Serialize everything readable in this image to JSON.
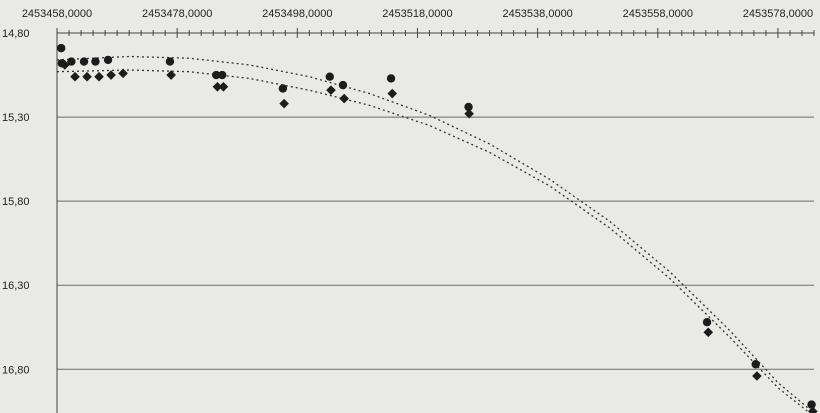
{
  "chart_data": {
    "type": "scatter",
    "title": "",
    "xlabel": "",
    "ylabel": "",
    "x_ticks": [
      "2453458,0000",
      "2453478,0000",
      "2453498,0000",
      "2453518,0000",
      "2453538,0000",
      "2453558,0000",
      "2453578,0000"
    ],
    "y_ticks": [
      "14,80",
      "15,30",
      "15,80",
      "16,30",
      "16,80"
    ],
    "xlim": [
      2453458,
      2453584
    ],
    "ylim": [
      14.8,
      17.06
    ],
    "y_inverted": true,
    "grid": true,
    "series": [
      {
        "marker": "circle",
        "points": [
          {
            "x": 2453458.7,
            "y": 14.89
          },
          {
            "x": 2453458.8,
            "y": 14.98
          },
          {
            "x": 2453460.4,
            "y": 14.97
          },
          {
            "x": 2453462.5,
            "y": 14.97
          },
          {
            "x": 2453464.4,
            "y": 14.97
          },
          {
            "x": 2453466.5,
            "y": 14.96
          },
          {
            "x": 2453476.8,
            "y": 14.97
          },
          {
            "x": 2453484.5,
            "y": 15.05
          },
          {
            "x": 2453485.5,
            "y": 15.05
          },
          {
            "x": 2453495.6,
            "y": 15.13
          },
          {
            "x": 2453503.4,
            "y": 15.06
          },
          {
            "x": 2453505.6,
            "y": 15.11
          },
          {
            "x": 2453513.6,
            "y": 15.07
          },
          {
            "x": 2453526.5,
            "y": 15.24
          },
          {
            "x": 2453566.2,
            "y": 16.52
          },
          {
            "x": 2453574.3,
            "y": 16.77
          },
          {
            "x": 2453583.6,
            "y": 17.01
          }
        ]
      },
      {
        "marker": "diamond",
        "points": [
          {
            "x": 2453459.3,
            "y": 14.99
          },
          {
            "x": 2453461.0,
            "y": 15.06
          },
          {
            "x": 2453463.0,
            "y": 15.06
          },
          {
            "x": 2453465.0,
            "y": 15.06
          },
          {
            "x": 2453467.0,
            "y": 15.05
          },
          {
            "x": 2453469.0,
            "y": 15.04
          },
          {
            "x": 2453477.0,
            "y": 15.05
          },
          {
            "x": 2453484.7,
            "y": 15.12
          },
          {
            "x": 2453485.7,
            "y": 15.12
          },
          {
            "x": 2453495.8,
            "y": 15.22
          },
          {
            "x": 2453503.6,
            "y": 15.14
          },
          {
            "x": 2453505.8,
            "y": 15.19
          },
          {
            "x": 2453513.8,
            "y": 15.16
          },
          {
            "x": 2453526.6,
            "y": 15.28
          },
          {
            "x": 2453566.4,
            "y": 16.58
          },
          {
            "x": 2453574.5,
            "y": 16.84
          },
          {
            "x": 2453583.8,
            "y": 17.05
          }
        ]
      }
    ],
    "trendlines": [
      {
        "style": "dotted",
        "points": [
          {
            "x": 2453458,
            "y": 14.96
          },
          {
            "x": 2453470,
            "y": 14.94
          },
          {
            "x": 2453480,
            "y": 14.95
          },
          {
            "x": 2453490,
            "y": 14.99
          },
          {
            "x": 2453500,
            "y": 15.06
          },
          {
            "x": 2453510,
            "y": 15.16
          },
          {
            "x": 2453520,
            "y": 15.29
          },
          {
            "x": 2453530,
            "y": 15.46
          },
          {
            "x": 2453540,
            "y": 15.67
          },
          {
            "x": 2453550,
            "y": 15.92
          },
          {
            "x": 2453560,
            "y": 16.22
          },
          {
            "x": 2453570,
            "y": 16.57
          },
          {
            "x": 2453578,
            "y": 16.88
          },
          {
            "x": 2453584,
            "y": 17.06
          }
        ]
      },
      {
        "style": "dotted",
        "points": [
          {
            "x": 2453458,
            "y": 15.03
          },
          {
            "x": 2453470,
            "y": 15.02
          },
          {
            "x": 2453480,
            "y": 15.03
          },
          {
            "x": 2453490,
            "y": 15.07
          },
          {
            "x": 2453500,
            "y": 15.14
          },
          {
            "x": 2453510,
            "y": 15.23
          },
          {
            "x": 2453520,
            "y": 15.35
          },
          {
            "x": 2453530,
            "y": 15.51
          },
          {
            "x": 2453540,
            "y": 15.71
          },
          {
            "x": 2453550,
            "y": 15.96
          },
          {
            "x": 2453560,
            "y": 16.26
          },
          {
            "x": 2453570,
            "y": 16.61
          },
          {
            "x": 2453578,
            "y": 16.91
          },
          {
            "x": 2453584,
            "y": 17.08
          }
        ]
      }
    ],
    "colors": {
      "background": "#e9e9e6",
      "grid": "#6d6d6d",
      "markers": "#1c1c1c"
    }
  }
}
